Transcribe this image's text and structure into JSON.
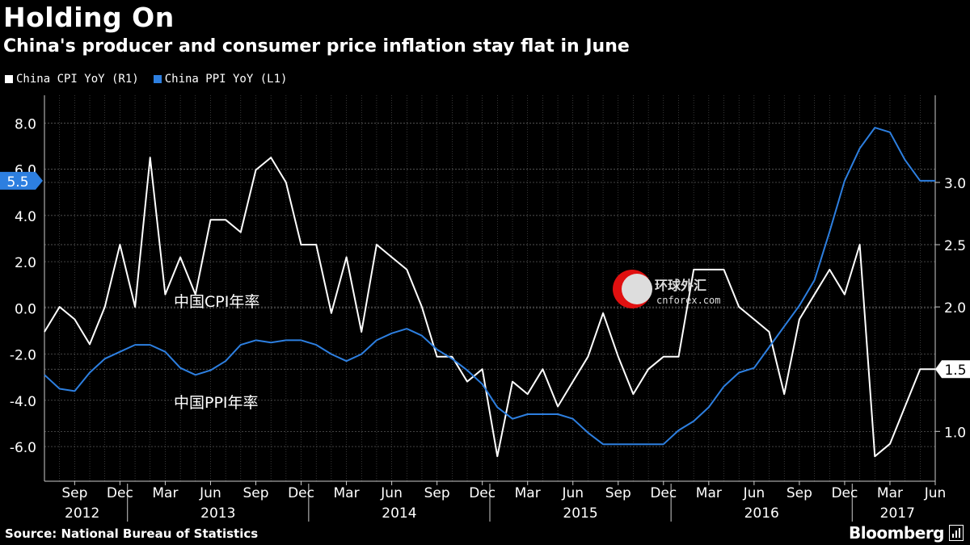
{
  "title": "Holding On",
  "subtitle": "China's producer and consumer price inflation stay flat in June",
  "legend": [
    {
      "label": "China CPI YoY  (R1)",
      "color": "#ffffff"
    },
    {
      "label": "China PPI YoY  (L1)",
      "color": "#2d7fe0"
    }
  ],
  "source": "Source: National Bureau of Statistics",
  "brand": "Bloomberg",
  "watermark": {
    "cn": "环球外汇",
    "url": "cnforex.com"
  },
  "chart_data": {
    "type": "line",
    "x_start": "2012-07",
    "x_end": "2017-06",
    "left_axis": {
      "ticks": [
        8.0,
        6.0,
        4.0,
        2.0,
        0.0,
        -2.0,
        -4.0,
        -6.0
      ],
      "tick_labels": [
        "8.0",
        "6.0",
        "4.0",
        "2.0",
        "0.0",
        "-2.0",
        "-4.0",
        "-6.0"
      ],
      "range": [
        -7.5,
        9.2
      ],
      "current_label": "5.5"
    },
    "right_axis": {
      "ticks": [
        3.0,
        2.5,
        2.0,
        1.5,
        1.0
      ],
      "tick_labels": [
        "3.0",
        "2.5",
        "2.0",
        "1.5",
        "1.0"
      ],
      "range": [
        0.6,
        3.7
      ],
      "current_label": "1.5"
    },
    "x_tick_labels": [
      "Sep",
      "Dec",
      "Mar",
      "Jun",
      "Sep",
      "Dec",
      "Mar",
      "Jun",
      "Sep",
      "Dec",
      "Mar",
      "Jun",
      "Sep",
      "Dec",
      "Mar",
      "Jun",
      "Sep",
      "Dec",
      "Mar",
      "Jun"
    ],
    "year_labels": [
      "2012",
      "2013",
      "2014",
      "2015",
      "2016",
      "2017"
    ],
    "grid": true,
    "annotations": [
      "中国CPI年率",
      "中国PPI年率"
    ],
    "series": [
      {
        "name": "China CPI YoY  (R1)",
        "axis": "right",
        "color": "#ffffff",
        "values": [
          1.8,
          2.0,
          1.9,
          1.7,
          2.0,
          2.5,
          2.0,
          3.2,
          2.1,
          2.4,
          2.1,
          2.7,
          2.7,
          2.6,
          3.1,
          3.2,
          3.0,
          2.5,
          2.5,
          1.95,
          2.4,
          1.8,
          2.5,
          2.4,
          2.3,
          2.0,
          1.6,
          1.6,
          1.4,
          1.5,
          0.8,
          1.4,
          1.3,
          1.5,
          1.2,
          1.4,
          1.6,
          1.95,
          1.6,
          1.3,
          1.5,
          1.6,
          1.6,
          2.3,
          2.3,
          2.3,
          2.0,
          1.9,
          1.8,
          1.3,
          1.9,
          2.1,
          2.3,
          2.1,
          2.5,
          0.8,
          0.9,
          1.2,
          1.5,
          1.5
        ]
      },
      {
        "name": "China PPI YoY  (L1)",
        "axis": "left",
        "color": "#2d7fe0",
        "values": [
          -2.9,
          -3.5,
          -3.6,
          -2.8,
          -2.2,
          -1.9,
          -1.6,
          -1.6,
          -1.9,
          -2.6,
          -2.9,
          -2.7,
          -2.3,
          -1.6,
          -1.4,
          -1.5,
          -1.4,
          -1.4,
          -1.6,
          -2.0,
          -2.3,
          -2.0,
          -1.4,
          -1.1,
          -0.9,
          -1.2,
          -1.8,
          -2.2,
          -2.7,
          -3.3,
          -4.3,
          -4.8,
          -4.6,
          -4.6,
          -4.6,
          -4.8,
          -5.4,
          -5.9,
          -5.9,
          -5.9,
          -5.9,
          -5.9,
          -5.3,
          -4.9,
          -4.3,
          -3.4,
          -2.8,
          -2.6,
          -1.7,
          -0.8,
          0.1,
          1.2,
          3.3,
          5.5,
          6.9,
          7.8,
          7.6,
          6.4,
          5.5,
          5.5
        ]
      }
    ]
  }
}
